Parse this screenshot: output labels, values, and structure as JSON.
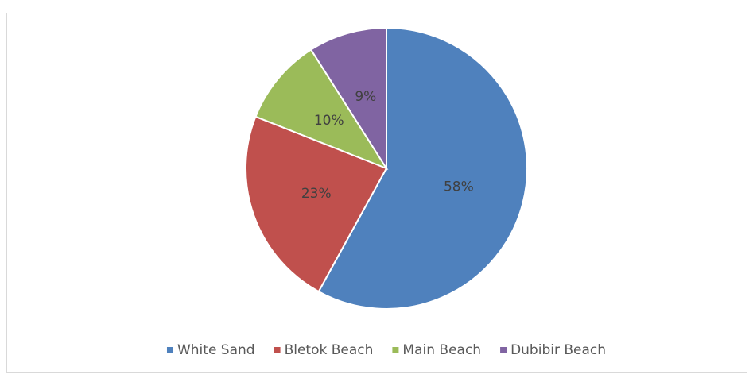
{
  "chart_data": {
    "type": "pie",
    "categories": [
      "White Sand",
      "Bletok Beach",
      "Main Beach",
      "Dubibir Beach"
    ],
    "values": [
      58,
      23,
      10,
      9
    ],
    "value_labels": [
      "58%",
      "23%",
      "10%",
      "9%"
    ],
    "colors": [
      "#4f81bd",
      "#c0504d",
      "#9bbb59",
      "#8064a2"
    ],
    "legend": "bottom"
  }
}
